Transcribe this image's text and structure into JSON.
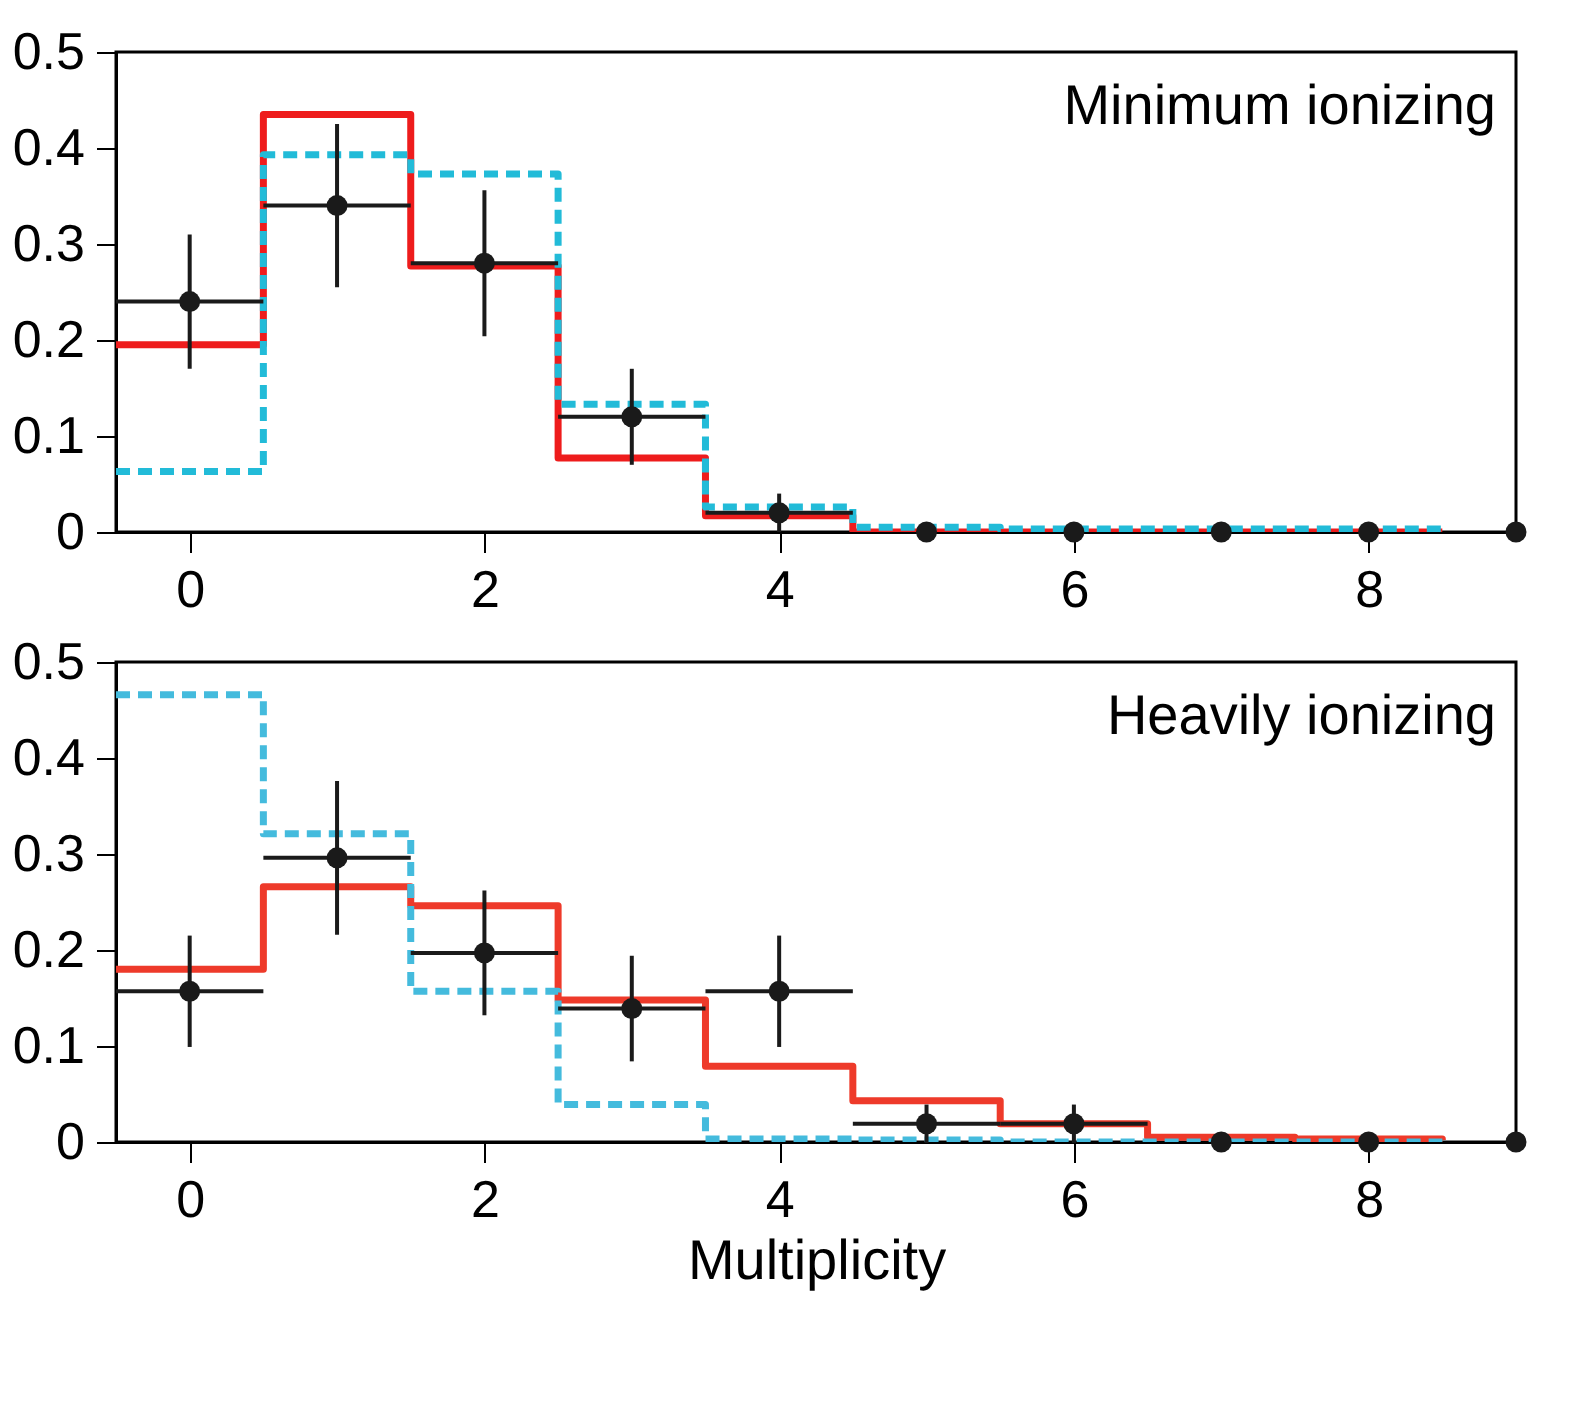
{
  "chart_data": [
    {
      "type": "step",
      "xlim": [
        -0.5,
        9
      ],
      "xticks": [
        0,
        2,
        4,
        6,
        8
      ],
      "ylim": [
        0,
        0.5
      ],
      "yticks": [
        0,
        0.1,
        0.2,
        0.3,
        0.4,
        0.5
      ],
      "grid": false,
      "annotations": [
        "Minimum ionizing"
      ],
      "series": [
        {
          "color": "#ee1c1c",
          "line_style": "solid",
          "x": [
            -0.5,
            0.5,
            1.5,
            2.5,
            3.5,
            4.5,
            5.5,
            6.5,
            7.5,
            8.5
          ],
          "values": [
            0.195,
            0.435,
            0.277,
            0.077,
            0.017,
            0,
            0,
            0,
            0,
            0
          ]
        },
        {
          "color": "#22bbd8",
          "line_style": "dashed",
          "x": [
            -0.5,
            0.5,
            1.5,
            2.5,
            3.5,
            4.5,
            5.5,
            6.5,
            7.5,
            8.5
          ],
          "values": [
            0.063,
            0.393,
            0.373,
            0.133,
            0.026,
            0.005,
            0.003,
            0.003,
            0.003,
            0.003
          ]
        },
        {
          "type": "scatter",
          "color": "#1a1a1a",
          "marker": "circle",
          "x": [
            0,
            1,
            2,
            3,
            4,
            5,
            6,
            7,
            8,
            9
          ],
          "values": [
            0.24,
            0.34,
            0.28,
            0.12,
            0.02,
            0,
            0,
            0,
            0,
            0
          ],
          "errors": [
            0.07,
            0.085,
            0.076,
            0.05,
            0.02,
            null,
            null,
            null,
            null,
            null
          ],
          "xerrors": [
            0.5,
            0.5,
            0.5,
            0.5,
            0.5,
            null,
            null,
            null,
            null,
            null
          ]
        }
      ]
    },
    {
      "type": "step",
      "xlim": [
        -0.5,
        9
      ],
      "xticks": [
        0,
        2,
        4,
        6,
        8
      ],
      "ylim": [
        0,
        0.5
      ],
      "yticks": [
        0,
        0.1,
        0.2,
        0.3,
        0.4,
        0.5
      ],
      "grid": false,
      "xlabel": "Multiplicity",
      "annotations": [
        "Heavily ionizing"
      ],
      "series": [
        {
          "color": "#ee3a2a",
          "line_style": "solid",
          "x": [
            -0.5,
            0.5,
            1.5,
            2.5,
            3.5,
            4.5,
            5.5,
            6.5,
            7.5,
            8.5
          ],
          "values": [
            0.18,
            0.266,
            0.246,
            0.148,
            0.079,
            0.043,
            0.019,
            0.005,
            0.003,
            0.002
          ]
        },
        {
          "color": "#44bbdd",
          "line_style": "dashed",
          "x": [
            -0.5,
            0.5,
            1.5,
            2.5,
            3.5,
            4.5,
            5.5,
            6.5,
            7.5,
            8.5
          ],
          "values": [
            0.466,
            0.321,
            0.157,
            0.039,
            0.003,
            0.002,
            0,
            0,
            0,
            0
          ]
        },
        {
          "type": "scatter",
          "color": "#1a1a1a",
          "marker": "circle",
          "x": [
            0,
            1,
            2,
            3,
            4,
            5,
            6,
            7,
            8,
            9
          ],
          "values": [
            0.157,
            0.296,
            0.197,
            0.139,
            0.157,
            0.019,
            0.019,
            0,
            0,
            0
          ],
          "errors": [
            0.058,
            0.08,
            0.065,
            0.055,
            0.058,
            0.02,
            0.02,
            null,
            null,
            null
          ],
          "xerrors": [
            0.5,
            0.5,
            0.5,
            0.5,
            0.5,
            0.5,
            0.5,
            null,
            null,
            null
          ]
        }
      ]
    }
  ]
}
